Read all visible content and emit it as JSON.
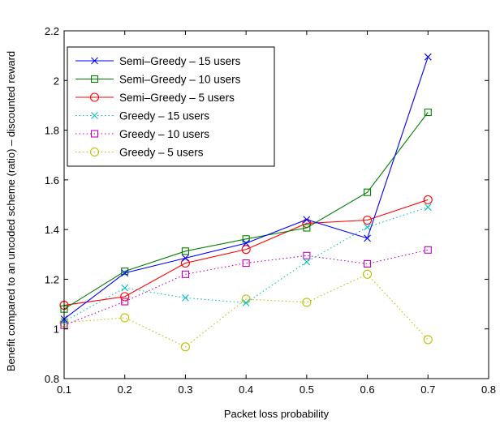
{
  "chart_data": {
    "type": "line",
    "title": "",
    "xlabel": "Packet loss probability",
    "ylabel": "Benefit compared to an uncoded scheme (ratio) – discounted reward",
    "xlim": [
      0.1,
      0.8
    ],
    "ylim": [
      0.8,
      2.2
    ],
    "xticks": [
      "0.1",
      "0.2",
      "0.3",
      "0.4",
      "0.5",
      "0.6",
      "0.7",
      "0.8"
    ],
    "yticks": [
      "0.8",
      "1",
      "1.2",
      "1.4",
      "1.6",
      "1.8",
      "2",
      "2.2"
    ],
    "grid": false,
    "legend_position": "top-left",
    "x": [
      0.1,
      0.2,
      0.3,
      0.4,
      0.5,
      0.6,
      0.7
    ],
    "series": [
      {
        "name": "Semi–Greedy – 15 users",
        "color": "#0000ff",
        "linestyle": "solid",
        "marker": "x",
        "values": [
          1.04,
          1.225,
          1.285,
          1.345,
          1.44,
          1.365,
          2.095
        ]
      },
      {
        "name": "Semi–Greedy – 10 users",
        "color": "#008000",
        "linestyle": "solid",
        "marker": "square",
        "values": [
          1.08,
          1.232,
          1.313,
          1.362,
          1.407,
          1.55,
          1.872
        ]
      },
      {
        "name": "Semi–Greedy – 5 users",
        "color": "#ff0000",
        "linestyle": "solid",
        "marker": "circle",
        "values": [
          1.095,
          1.13,
          1.265,
          1.32,
          1.425,
          1.438,
          1.52
        ]
      },
      {
        "name": "Greedy – 15 users",
        "color": "#00bfbf",
        "linestyle": "dotted",
        "marker": "x",
        "values": [
          1.03,
          1.165,
          1.125,
          1.105,
          1.27,
          1.41,
          1.49
        ]
      },
      {
        "name": "Greedy – 10 users",
        "color": "#bf00bf",
        "linestyle": "dotted",
        "marker": "square",
        "values": [
          1.015,
          1.11,
          1.22,
          1.265,
          1.295,
          1.262,
          1.318
        ]
      },
      {
        "name": "Greedy – 5 users",
        "color": "#bfbf00",
        "linestyle": "dotted",
        "marker": "circle",
        "values": [
          1.025,
          1.045,
          0.928,
          1.12,
          1.107,
          1.22,
          0.957
        ]
      }
    ]
  }
}
